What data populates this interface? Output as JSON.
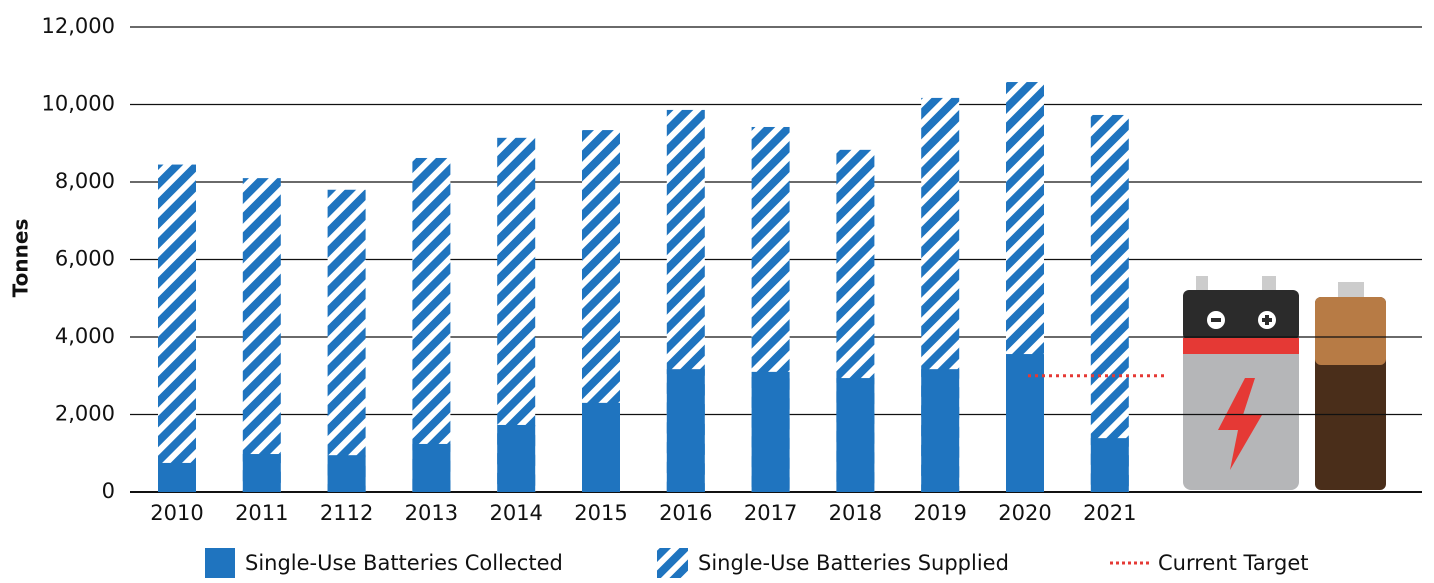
{
  "chart_data": {
    "type": "bar",
    "y_label": "Tonnes",
    "categories": [
      "2010",
      "2011",
      "2112",
      "2013",
      "2014",
      "2015",
      "2016",
      "2017",
      "2018",
      "2019",
      "2020",
      "2021"
    ],
    "series": [
      {
        "name": "Single-Use Batteries Collected",
        "color": "#1f74bf",
        "values": [
          750,
          980,
          950,
          1240,
          1730,
          2300,
          3170,
          3100,
          2940,
          3170,
          3560,
          1390
        ]
      },
      {
        "name": "Single-Use Batteries Supplied",
        "color": "#1f74bf",
        "pattern": "hatch",
        "values": [
          8450,
          8100,
          7800,
          8620,
          9140,
          9340,
          9860,
          9420,
          8830,
          10170,
          10580,
          9730
        ]
      }
    ],
    "target": {
      "name": "Current Target",
      "value": 3000,
      "color": "#e53935"
    },
    "ylim": [
      0,
      12000
    ],
    "yticks": [
      0,
      {
        "value": 2000,
        "label": "2,000"
      },
      {
        "value": 4000,
        "label": "4,000"
      },
      {
        "value": 6000,
        "label": "6,000"
      },
      {
        "value": 8000,
        "label": "8,000"
      },
      {
        "value": 10000,
        "label": "10,000"
      },
      {
        "value": 12000,
        "label": "12,000"
      }
    ],
    "grid": true
  }
}
